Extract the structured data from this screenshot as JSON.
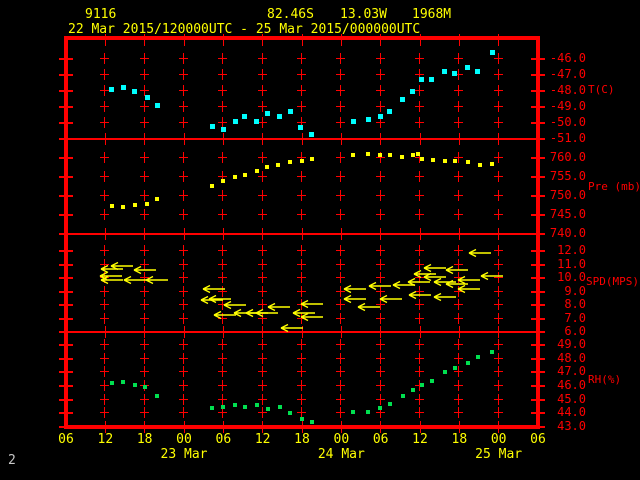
{
  "header": {
    "station_id": "9116",
    "latitude": "82.46S",
    "longitude": "13.03W",
    "elevation": "1968M",
    "period": "22 Mar 2015/120000UTC - 25 Mar 2015/000000UTC"
  },
  "footer": {
    "page_number": "2"
  },
  "colors": {
    "background": "#000000",
    "frame": "#ff0000",
    "axis_text": "#ff0000",
    "time_text": "#ffff00",
    "temperature_marker": "#00ffff",
    "pressure_marker": "#ffff00",
    "wind_marker": "#ffff00",
    "humidity_marker": "#00e050"
  },
  "x_axis": {
    "hour_labels": [
      "06",
      "12",
      "18",
      "00",
      "06",
      "12",
      "18",
      "00",
      "06",
      "12",
      "18",
      "00",
      "06"
    ],
    "date_labels": [
      {
        "label": "23 Mar",
        "tick_index": 3
      },
      {
        "label": "24 Mar",
        "tick_index": 7
      },
      {
        "label": "25 Mar",
        "tick_index": 11
      }
    ],
    "hours_per_tick": 6
  },
  "chart_data": [
    {
      "type": "scatter",
      "name": "temperature",
      "ylabel": "T(C)",
      "marker": "square",
      "color": "#00ffff",
      "yticks": [
        "-46.0",
        "-47.0",
        "-48.0",
        "-49.0",
        "-50.0",
        "-51.0"
      ],
      "ylim": [
        -51.0,
        -46.0
      ],
      "points_format": [
        "t_hours_from_first_tick",
        "value"
      ],
      "points": [
        [
          7.0,
          -47.9
        ],
        [
          8.7,
          -47.8
        ],
        [
          10.5,
          -48.0
        ],
        [
          12.4,
          -48.4
        ],
        [
          13.9,
          -48.9
        ],
        [
          22.3,
          -50.2
        ],
        [
          24.0,
          -50.4
        ],
        [
          25.8,
          -49.9
        ],
        [
          27.3,
          -49.6
        ],
        [
          29.1,
          -49.9
        ],
        [
          30.8,
          -49.4
        ],
        [
          32.6,
          -49.6
        ],
        [
          34.2,
          -49.3
        ],
        [
          35.7,
          -50.3
        ],
        [
          37.5,
          -50.7
        ],
        [
          43.8,
          -49.9
        ],
        [
          46.1,
          -49.8
        ],
        [
          47.9,
          -49.6
        ],
        [
          49.4,
          -49.3
        ],
        [
          51.4,
          -48.5
        ],
        [
          52.9,
          -48.0
        ],
        [
          54.3,
          -47.3
        ],
        [
          55.8,
          -47.3
        ],
        [
          57.8,
          -46.8
        ],
        [
          59.3,
          -46.9
        ],
        [
          61.3,
          -46.5
        ],
        [
          62.8,
          -46.8
        ],
        [
          65.0,
          -45.6
        ]
      ]
    },
    {
      "type": "scatter",
      "name": "pressure",
      "ylabel": "Pre (mb)",
      "marker": "square",
      "color": "#ffff00",
      "yticks": [
        "760.0",
        "755.0",
        "750.0",
        "745.0",
        "740.0"
      ],
      "ylim": [
        740.0,
        760.0
      ],
      "points_format": [
        "t_hours_from_first_tick",
        "value"
      ],
      "points": [
        [
          7.0,
          747.4
        ],
        [
          8.7,
          747.1
        ],
        [
          10.5,
          747.6
        ],
        [
          12.4,
          747.9
        ],
        [
          13.9,
          749.2
        ],
        [
          22.3,
          752.6
        ],
        [
          24.0,
          754.0
        ],
        [
          25.8,
          755.0
        ],
        [
          27.3,
          755.5
        ],
        [
          29.1,
          756.6
        ],
        [
          30.7,
          757.6
        ],
        [
          32.3,
          758.2
        ],
        [
          34.2,
          758.9
        ],
        [
          36.0,
          759.2
        ],
        [
          37.5,
          759.7
        ],
        [
          43.8,
          760.8
        ],
        [
          46.1,
          761.0
        ],
        [
          47.9,
          760.8
        ],
        [
          49.4,
          760.8
        ],
        [
          51.3,
          760.3
        ],
        [
          52.9,
          760.8
        ],
        [
          53.7,
          761.0
        ],
        [
          54.3,
          759.7
        ],
        [
          56.0,
          759.5
        ],
        [
          57.8,
          759.2
        ],
        [
          59.3,
          759.2
        ],
        [
          61.3,
          758.9
        ],
        [
          63.1,
          758.2
        ],
        [
          65.0,
          758.4
        ]
      ]
    },
    {
      "type": "wind_vector",
      "name": "wind_speed",
      "ylabel": "SPD(MPS)",
      "marker": "left_arrow",
      "color": "#ffff00",
      "yticks": [
        "12.0",
        "11.0",
        "10.0",
        "9.0",
        "8.0",
        "7.0",
        "6.0"
      ],
      "ylim": [
        6.0,
        12.0
      ],
      "points_format": [
        "t_hours_from_first_tick",
        "value"
      ],
      "points": [
        [
          5.0,
          10.4
        ],
        [
          5.2,
          10.9
        ],
        [
          5.2,
          10.1
        ],
        [
          6.7,
          11.1
        ],
        [
          8.7,
          10.1
        ],
        [
          10.2,
          10.8
        ],
        [
          12.1,
          10.1
        ],
        [
          20.4,
          8.6
        ],
        [
          20.7,
          9.4
        ],
        [
          21.7,
          8.7
        ],
        [
          22.4,
          7.5
        ],
        [
          24.0,
          8.2
        ],
        [
          25.5,
          7.6
        ],
        [
          27.3,
          7.6
        ],
        [
          28.8,
          7.6
        ],
        [
          30.7,
          8.1
        ],
        [
          32.6,
          6.5
        ],
        [
          34.5,
          7.6
        ],
        [
          35.7,
          8.3
        ],
        [
          35.7,
          7.3
        ],
        [
          42.3,
          9.4
        ],
        [
          42.3,
          8.7
        ],
        [
          44.4,
          8.1
        ],
        [
          46.1,
          9.6
        ],
        [
          47.7,
          8.7
        ],
        [
          49.7,
          9.7
        ],
        [
          52.0,
          9.9
        ],
        [
          52.2,
          9.0
        ],
        [
          52.9,
          10.5
        ],
        [
          54.5,
          11.0
        ],
        [
          54.5,
          10.3
        ],
        [
          56.0,
          9.9
        ],
        [
          56.0,
          8.8
        ],
        [
          57.8,
          10.8
        ],
        [
          57.8,
          9.8
        ],
        [
          59.6,
          10.1
        ],
        [
          59.6,
          9.4
        ],
        [
          61.3,
          12.1
        ],
        [
          63.1,
          10.4
        ]
      ]
    },
    {
      "type": "scatter",
      "name": "relative_humidity",
      "ylabel": "RH(%)",
      "marker": "square",
      "color": "#00e050",
      "yticks": [
        "49.0",
        "48.0",
        "47.0",
        "46.0",
        "45.0",
        "44.0",
        "43.0"
      ],
      "ylim": [
        43.0,
        49.0
      ],
      "points_format": [
        "t_hours_from_first_tick",
        "value"
      ],
      "points": [
        [
          7.0,
          46.2
        ],
        [
          8.7,
          46.3
        ],
        [
          10.5,
          46.1
        ],
        [
          12.1,
          45.9
        ],
        [
          13.9,
          45.3
        ],
        [
          22.3,
          44.4
        ],
        [
          24.0,
          44.5
        ],
        [
          25.8,
          44.6
        ],
        [
          27.3,
          44.5
        ],
        [
          29.1,
          44.6
        ],
        [
          30.8,
          44.3
        ],
        [
          32.6,
          44.5
        ],
        [
          34.2,
          44.0
        ],
        [
          36.0,
          43.6
        ],
        [
          37.5,
          43.4
        ],
        [
          43.8,
          44.1
        ],
        [
          46.1,
          44.1
        ],
        [
          47.9,
          44.4
        ],
        [
          49.4,
          44.7
        ],
        [
          51.4,
          45.3
        ],
        [
          52.9,
          45.7
        ],
        [
          54.3,
          46.1
        ],
        [
          55.8,
          46.4
        ],
        [
          57.8,
          47.0
        ],
        [
          59.3,
          47.3
        ],
        [
          61.3,
          47.7
        ],
        [
          62.8,
          48.1
        ],
        [
          65.0,
          48.5
        ]
      ]
    }
  ]
}
